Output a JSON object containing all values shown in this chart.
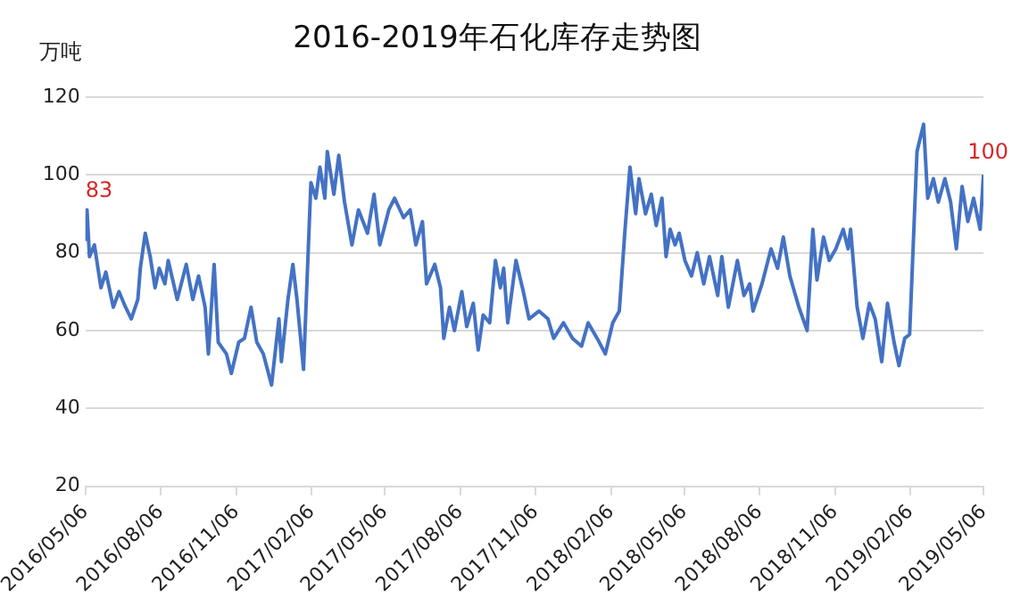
{
  "chart_data": {
    "type": "line",
    "title": "2016-2019年石化库存走势图",
    "ylabel": "万吨",
    "x": [
      "2016-05-06",
      "2016-05-08",
      "2016-05-11",
      "2016-05-17",
      "2016-05-25",
      "2016-05-31",
      "2016-06-09",
      "2016-06-16",
      "2016-06-24",
      "2016-07-01",
      "2016-07-09",
      "2016-07-12",
      "2016-07-18",
      "2016-07-24",
      "2016-07-30",
      "2016-08-04",
      "2016-08-11",
      "2016-08-15",
      "2016-08-26",
      "2016-09-06",
      "2016-09-14",
      "2016-09-21",
      "2016-09-29",
      "2016-10-03",
      "2016-10-10",
      "2016-10-15",
      "2016-10-25",
      "2016-10-31",
      "2016-11-09",
      "2016-11-16",
      "2016-11-24",
      "2016-12-01",
      "2016-12-09",
      "2016-12-19",
      "2016-12-28",
      "2016-12-31",
      "2017-01-08",
      "2017-01-14",
      "2017-01-19",
      "2017-01-27",
      "2017-02-05",
      "2017-02-11",
      "2017-02-16",
      "2017-02-22",
      "2017-02-25",
      "2017-03-05",
      "2017-03-11",
      "2017-03-18",
      "2017-03-27",
      "2017-04-04",
      "2017-04-15",
      "2017-04-23",
      "2017-04-30",
      "2017-05-11",
      "2017-05-18",
      "2017-05-29",
      "2017-06-06",
      "2017-06-13",
      "2017-06-21",
      "2017-06-26",
      "2017-07-06",
      "2017-07-13",
      "2017-07-17",
      "2017-07-24",
      "2017-07-30",
      "2017-08-08",
      "2017-08-14",
      "2017-08-22",
      "2017-08-28",
      "2017-09-03",
      "2017-09-11",
      "2017-09-18",
      "2017-09-24",
      "2017-09-28",
      "2017-10-03",
      "2017-10-13",
      "2017-10-22",
      "2017-10-29",
      "2017-11-10",
      "2017-11-21",
      "2017-11-28",
      "2017-12-10",
      "2017-12-21",
      "2018-01-01",
      "2018-01-09",
      "2018-01-20",
      "2018-01-30",
      "2018-02-08",
      "2018-02-16",
      "2018-02-23",
      "2018-03-01",
      "2018-03-08",
      "2018-03-12",
      "2018-03-20",
      "2018-03-27",
      "2018-04-02",
      "2018-04-09",
      "2018-04-14",
      "2018-04-19",
      "2018-04-25",
      "2018-04-30",
      "2018-05-07",
      "2018-05-15",
      "2018-05-22",
      "2018-05-30",
      "2018-06-06",
      "2018-06-16",
      "2018-06-21",
      "2018-06-29",
      "2018-07-10",
      "2018-07-18",
      "2018-07-25",
      "2018-07-29",
      "2018-08-09",
      "2018-08-20",
      "2018-08-28",
      "2018-09-04",
      "2018-09-12",
      "2018-09-23",
      "2018-10-03",
      "2018-10-10",
      "2018-10-15",
      "2018-10-23",
      "2018-10-30",
      "2018-11-07",
      "2018-11-16",
      "2018-11-22",
      "2018-11-25",
      "2018-12-03",
      "2018-12-10",
      "2018-12-18",
      "2018-12-25",
      "2019-01-02",
      "2019-01-09",
      "2019-01-17",
      "2019-01-23",
      "2019-01-30",
      "2019-02-05",
      "2019-02-14",
      "2019-02-22",
      "2019-02-27",
      "2019-03-06",
      "2019-03-12",
      "2019-03-20",
      "2019-03-27",
      "2019-04-03",
      "2019-04-10",
      "2019-04-17",
      "2019-04-24",
      "2019-05-02",
      "2019-05-06"
    ],
    "series": [
      {
        "color": "#4472c4",
        "values": [
          83,
          91,
          79,
          82,
          71,
          75,
          66,
          70,
          66,
          63,
          68,
          76,
          85,
          79,
          71,
          76,
          72,
          78,
          68,
          77,
          68,
          74,
          66,
          54,
          77,
          57,
          54,
          49,
          57,
          58,
          66,
          57,
          54,
          46,
          63,
          52,
          68,
          77,
          68,
          50,
          98,
          94,
          102,
          94,
          106,
          95,
          105,
          93,
          82,
          91,
          85,
          95,
          82,
          91,
          94,
          89,
          91,
          82,
          88,
          72,
          77,
          71,
          58,
          66,
          60,
          70,
          61,
          67,
          55,
          64,
          62,
          78,
          71,
          76,
          62,
          78,
          70,
          63,
          65,
          63,
          58,
          62,
          58,
          56,
          62,
          58,
          54,
          62,
          65,
          86,
          102,
          90,
          99,
          90,
          95,
          87,
          94,
          79,
          86,
          82,
          85,
          78,
          74,
          80,
          72,
          79,
          69,
          79,
          66,
          78,
          69,
          72,
          65,
          72,
          81,
          76,
          84,
          74,
          66,
          60,
          86,
          73,
          84,
          78,
          81,
          86,
          81,
          86,
          66,
          58,
          67,
          63,
          52,
          67,
          57,
          51,
          58,
          59,
          106,
          113,
          94,
          99,
          93,
          99,
          93,
          81,
          97,
          88,
          94,
          86,
          100
        ]
      }
    ],
    "xlim": [
      "2016-05-06",
      "2019-05-06"
    ],
    "xticks": [
      {
        "value": "2016-05-06",
        "label": "2016/05/06"
      },
      {
        "value": "2016-08-06",
        "label": "2016/08/06"
      },
      {
        "value": "2016-11-06",
        "label": "2016/11/06"
      },
      {
        "value": "2017-02-06",
        "label": "2017/02/06"
      },
      {
        "value": "2017-05-06",
        "label": "2017/05/06"
      },
      {
        "value": "2017-08-06",
        "label": "2017/08/06"
      },
      {
        "value": "2017-11-06",
        "label": "2017/11/06"
      },
      {
        "value": "2018-02-06",
        "label": "2018/02/06"
      },
      {
        "value": "2018-05-06",
        "label": "2018/05/06"
      },
      {
        "value": "2018-08-06",
        "label": "2018/08/06"
      },
      {
        "value": "2018-11-06",
        "label": "2018/11/06"
      },
      {
        "value": "2019-02-06",
        "label": "2019/02/06"
      },
      {
        "value": "2019-05-06",
        "label": "2019/05/06"
      }
    ],
    "ylim": [
      20,
      120
    ],
    "yticks": [
      20,
      40,
      60,
      80,
      100,
      120
    ],
    "grid": "y",
    "legend": false,
    "marker": "none",
    "line_style": "solid",
    "annotations": [
      {
        "text": "83",
        "x": "2016-05-06",
        "y": 83
      },
      {
        "text": "100",
        "x": "2019-05-06",
        "y": 100
      }
    ]
  }
}
